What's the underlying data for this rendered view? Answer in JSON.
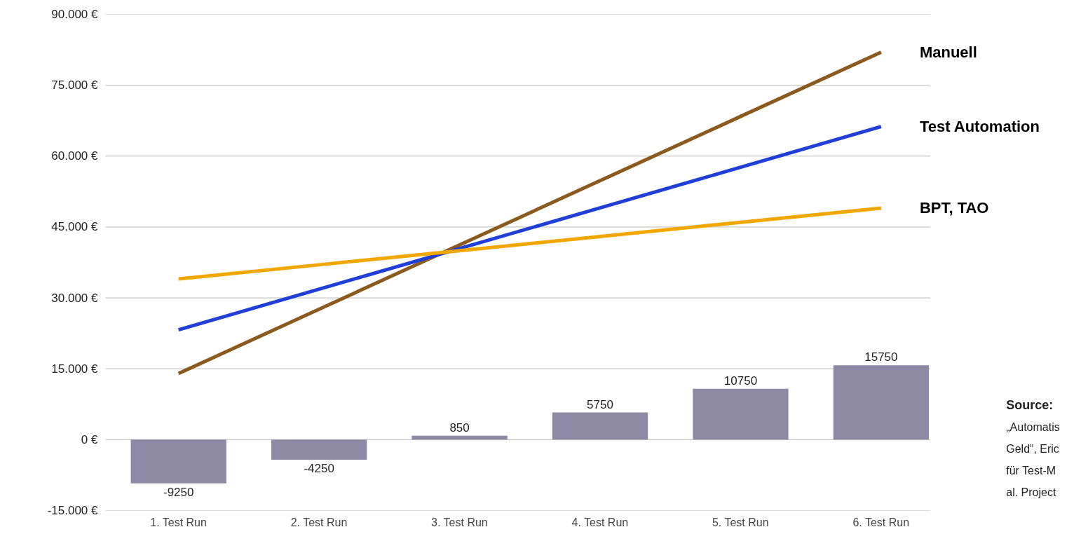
{
  "chart_data": {
    "type": "bar",
    "categories": [
      "1. Test Run",
      "2. Test Run",
      "3. Test Run",
      "4. Test Run",
      "5. Test Run",
      "6. Test Run"
    ],
    "series": [
      {
        "color": "#8e8aa6",
        "values": [
          -9250,
          -4250,
          850,
          5750,
          10750,
          15750
        ],
        "value_labels": [
          "-9250",
          "-4250",
          "850",
          "5750",
          "10750",
          "15750"
        ]
      },
      {
        "type": "line",
        "name": "Manuell",
        "color": "#8b5a1e",
        "values": [
          14000,
          27600,
          41200,
          54800,
          68400,
          82000
        ]
      },
      {
        "type": "line",
        "name": "Test Automation",
        "color": "#1f3fd6",
        "values": [
          23250,
          31850,
          40450,
          49050,
          57650,
          66250
        ]
      },
      {
        "type": "line",
        "name": "BPT, TAO",
        "color": "#f0a800",
        "values": [
          34000,
          37000,
          40000,
          43000,
          46000,
          49000
        ]
      }
    ],
    "ylim": [
      -15000,
      90000
    ],
    "yticks": [
      {
        "value": -15000,
        "label": "-15.000 €"
      },
      {
        "value": 0,
        "label": "0 €"
      },
      {
        "value": 15000,
        "label": "15.000 €"
      },
      {
        "value": 30000,
        "label": "30.000 €"
      },
      {
        "value": 45000,
        "label": "45.000 €"
      },
      {
        "value": 60000,
        "label": "60.000 €"
      },
      {
        "value": 75000,
        "label": "75.000 €"
      },
      {
        "value": 90000,
        "label": "90.000 €"
      }
    ],
    "grid": "y",
    "legend": false,
    "annotations": [
      "Source:",
      "„Automatis",
      "Geld“, Eric",
      "für Test-M",
      "al. Project"
    ]
  }
}
